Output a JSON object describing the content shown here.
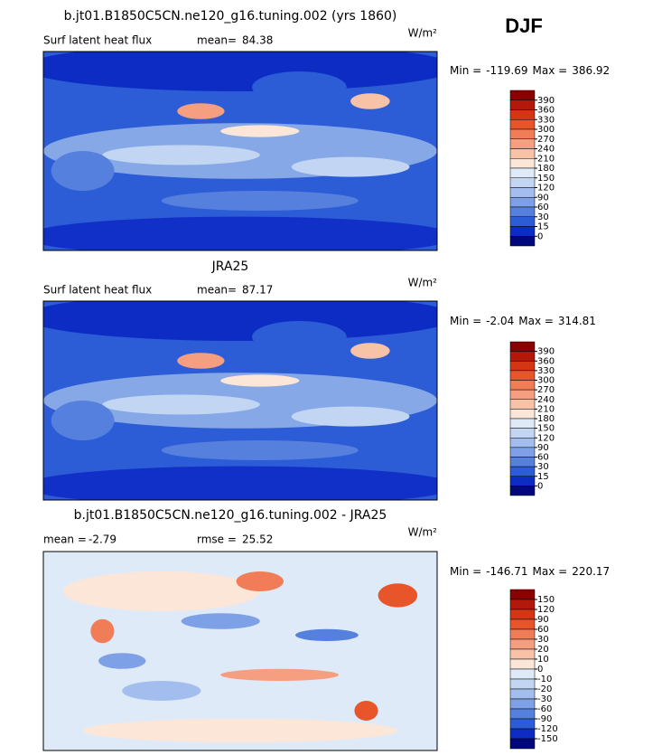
{
  "header": {
    "season": "DJF"
  },
  "panels": [
    {
      "title": "b.jt01.B1850C5CN.ne120_g16.tuning.002 (yrs 1860)",
      "subtitle": "Surf latent heat flux",
      "stats": [
        {
          "label": "mean=",
          "value": 84.38
        }
      ],
      "units": "W/m²",
      "min_label": "Min =",
      "min": -119.69,
      "max_label": "Max =",
      "max": 386.92,
      "colorbar": {
        "levels": [
          390,
          360,
          330,
          300,
          270,
          240,
          210,
          180,
          150,
          120,
          90,
          60,
          30,
          15,
          0
        ],
        "colors": [
          "#8b0000",
          "#b3180a",
          "#d43512",
          "#e8552a",
          "#f07c58",
          "#f59e80",
          "#f8c2a6",
          "#fce6d8",
          "#dfeaf8",
          "#c2d6f4",
          "#a2bdee",
          "#7ea0e6",
          "#5680de",
          "#2c5cd6",
          "#0c2cc4",
          "#00087c"
        ]
      },
      "style": "flux"
    },
    {
      "title": "JRA25",
      "subtitle": "Surf latent heat flux",
      "stats": [
        {
          "label": "mean=",
          "value": 87.17
        }
      ],
      "units": "W/m²",
      "min_label": "Min =",
      "min": -2.04,
      "max_label": "Max =",
      "max": 314.81,
      "colorbar": {
        "levels": [
          390,
          360,
          330,
          300,
          270,
          240,
          210,
          180,
          150,
          120,
          90,
          60,
          30,
          15,
          0
        ],
        "colors": [
          "#8b0000",
          "#b3180a",
          "#d43512",
          "#e8552a",
          "#f07c58",
          "#f59e80",
          "#f8c2a6",
          "#fce6d8",
          "#dfeaf8",
          "#c2d6f4",
          "#a2bdee",
          "#7ea0e6",
          "#5680de",
          "#2c5cd6",
          "#0c2cc4",
          "#00087c"
        ]
      },
      "style": "flux"
    },
    {
      "title": "b.jt01.B1850C5CN.ne120_g16.tuning.002 - JRA25",
      "stats": [
        {
          "label": "mean =",
          "value": -2.79
        },
        {
          "label": "rmse =",
          "value": 25.52
        }
      ],
      "units": "W/m²",
      "min_label": "Min =",
      "min": -146.71,
      "max_label": "Max =",
      "max": 220.17,
      "colorbar": {
        "levels": [
          150,
          120,
          90,
          60,
          30,
          20,
          10,
          0,
          -10,
          -20,
          -30,
          -60,
          -90,
          -120,
          -150
        ],
        "colors": [
          "#8b0000",
          "#b3180a",
          "#d43512",
          "#e8552a",
          "#f07c58",
          "#f59e80",
          "#f8c2a6",
          "#fce6d8",
          "#dfeaf8",
          "#c2d6f4",
          "#a2bdee",
          "#7ea0e6",
          "#5680de",
          "#2c5cd6",
          "#0c2cc4",
          "#00087c"
        ]
      },
      "style": "diff"
    }
  ]
}
